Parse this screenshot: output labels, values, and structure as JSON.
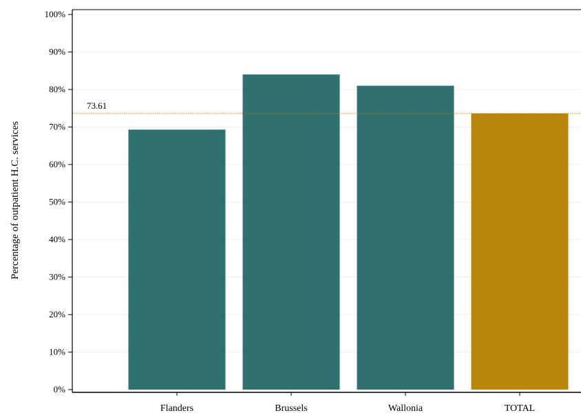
{
  "chart_data": {
    "type": "bar",
    "categories": [
      "Flanders",
      "Brussels",
      "Wallonia",
      "TOTAL"
    ],
    "values": [
      69.3,
      84.0,
      81.0,
      73.61
    ],
    "bar_colors": [
      "#2e7170",
      "#2e7170",
      "#2e7170",
      "#b8860b"
    ],
    "title": "",
    "xlabel": "",
    "ylabel": "Percentage of outpatient H.C. services",
    "ylim": [
      0,
      100
    ],
    "yticks": [
      "0%",
      "10%",
      "20%",
      "30%",
      "40%",
      "50%",
      "60%",
      "70%",
      "80%",
      "90%",
      "100%"
    ],
    "grid": true,
    "reference_line": {
      "value": 73.61,
      "label": "73.61",
      "color": "#b8860b"
    }
  }
}
